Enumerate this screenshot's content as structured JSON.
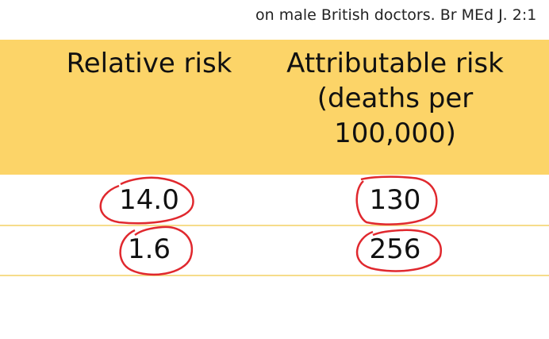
{
  "citation": "on male British doctors. Br MEd J. 2:1",
  "table": {
    "headers": [
      [
        "Relative risk"
      ],
      [
        "Attributable risk",
        "(deaths per",
        "100,000)"
      ]
    ],
    "rows": [
      [
        "14.0",
        "130"
      ],
      [
        "1.6",
        "256"
      ]
    ]
  }
}
